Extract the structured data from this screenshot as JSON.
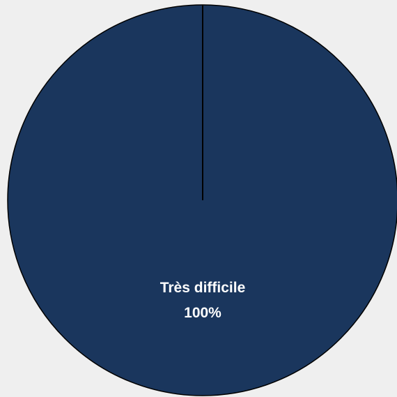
{
  "chart_data": {
    "type": "pie",
    "title": "",
    "slices": [
      {
        "label": "Très difficile",
        "value": 100,
        "percent_label": "100%",
        "color": "#1a365d"
      }
    ],
    "outline_color": "#000000",
    "background_color": "#efefef",
    "legend": "none"
  }
}
